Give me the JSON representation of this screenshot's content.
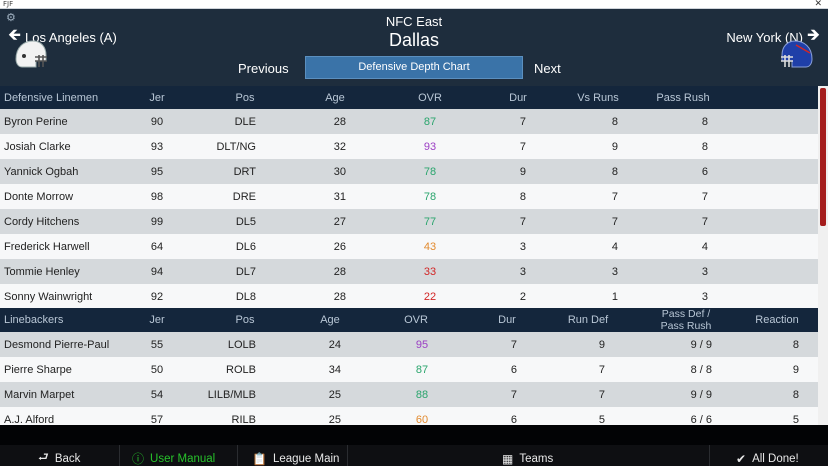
{
  "window": {
    "app_mark": "FJF",
    "close_glyph": "✕"
  },
  "header": {
    "division": "NFC East",
    "team": "Dallas",
    "prev_team": "Los Angeles (A)",
    "next_team": "New York (N)",
    "prev_label": "Previous",
    "next_label": "Next",
    "depth_chart_label": "Defensive Depth Chart",
    "icons": {
      "settings": "gear-icon",
      "prev": "arrow-left-icon",
      "next": "arrow-right-icon"
    }
  },
  "linemen": {
    "headers": [
      "Defensive Linemen",
      "Jer",
      "Pos",
      "Age",
      "OVR",
      "Dur",
      "Vs Runs",
      "Pass Rush"
    ],
    "rows": [
      {
        "name": "Byron Perine",
        "jer": "90",
        "pos": "DLE",
        "age": "28",
        "ovr": "87",
        "tier": "green",
        "dur": "7",
        "vs_runs": "8",
        "pass_rush": "8"
      },
      {
        "name": "Josiah Clarke",
        "jer": "93",
        "pos": "DLT/NG",
        "age": "32",
        "ovr": "93",
        "tier": "purple",
        "dur": "7",
        "vs_runs": "9",
        "pass_rush": "8"
      },
      {
        "name": "Yannick Ogbah",
        "jer": "95",
        "pos": "DRT",
        "age": "30",
        "ovr": "78",
        "tier": "green",
        "dur": "9",
        "vs_runs": "8",
        "pass_rush": "6"
      },
      {
        "name": "Donte Morrow",
        "jer": "98",
        "pos": "DRE",
        "age": "31",
        "ovr": "78",
        "tier": "green",
        "dur": "8",
        "vs_runs": "7",
        "pass_rush": "7"
      },
      {
        "name": "Cordy Hitchens",
        "jer": "99",
        "pos": "DL5",
        "age": "27",
        "ovr": "77",
        "tier": "green",
        "dur": "7",
        "vs_runs": "7",
        "pass_rush": "7"
      },
      {
        "name": "Frederick Harwell",
        "jer": "64",
        "pos": "DL6",
        "age": "26",
        "ovr": "43",
        "tier": "orange",
        "dur": "3",
        "vs_runs": "4",
        "pass_rush": "4"
      },
      {
        "name": "Tommie Henley",
        "jer": "94",
        "pos": "DL7",
        "age": "28",
        "ovr": "33",
        "tier": "red",
        "dur": "3",
        "vs_runs": "3",
        "pass_rush": "3"
      },
      {
        "name": "Sonny Wainwright",
        "jer": "92",
        "pos": "DL8",
        "age": "28",
        "ovr": "22",
        "tier": "red",
        "dur": "2",
        "vs_runs": "1",
        "pass_rush": "3"
      }
    ]
  },
  "linebackers": {
    "headers": [
      "Linebackers",
      "Jer",
      "Pos",
      "Age",
      "OVR",
      "Dur",
      "Run Def",
      "Pass Def /",
      "Pass Rush",
      "Reaction"
    ],
    "rows": [
      {
        "name": "Desmond Pierre-Paul",
        "jer": "55",
        "pos": "LOLB",
        "age": "24",
        "ovr": "95",
        "tier": "purple",
        "dur": "7",
        "run_def": "9",
        "pass": "9 / 9",
        "reaction": "8"
      },
      {
        "name": "Pierre Sharpe",
        "jer": "50",
        "pos": "ROLB",
        "age": "34",
        "ovr": "87",
        "tier": "green",
        "dur": "6",
        "run_def": "7",
        "pass": "8 / 8",
        "reaction": "9"
      },
      {
        "name": "Marvin Marpet",
        "jer": "54",
        "pos": "LILB/MLB",
        "age": "25",
        "ovr": "88",
        "tier": "green",
        "dur": "7",
        "run_def": "7",
        "pass": "9 / 9",
        "reaction": "8"
      },
      {
        "name": "A.J. Alford",
        "jer": "57",
        "pos": "RILB",
        "age": "25",
        "ovr": "60",
        "tier": "orange",
        "dur": "6",
        "run_def": "5",
        "pass": "6 / 6",
        "reaction": "5"
      }
    ]
  },
  "colors": {
    "purple": "#9b3fc4",
    "green": "#2aa56d",
    "orange": "#e28a2e",
    "red": "#d22626",
    "accent": "#3a73a8"
  },
  "footer": {
    "back": "Back",
    "manual": "User Manual",
    "league": "League Main",
    "teams": "Teams",
    "done": "All Done!"
  }
}
